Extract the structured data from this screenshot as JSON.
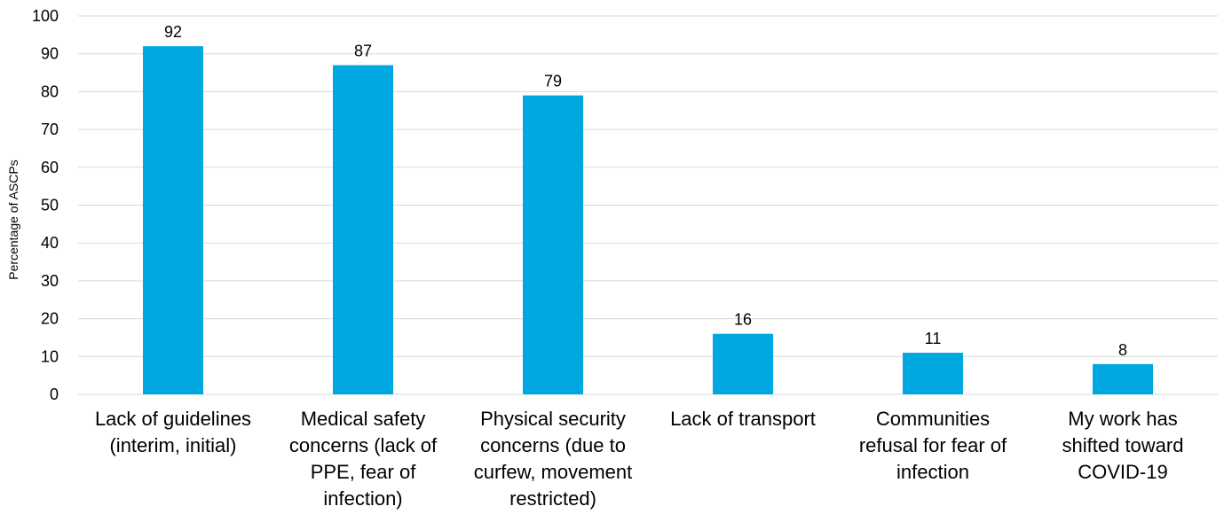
{
  "chart_data": {
    "type": "bar",
    "ylabel": "Percentage of ASCPs",
    "ylim": [
      0,
      100
    ],
    "yticks": [
      0,
      10,
      20,
      30,
      40,
      50,
      60,
      70,
      80,
      90,
      100
    ],
    "grid": true,
    "categories": [
      [
        "Lack of guidelines",
        "(interim, initial)"
      ],
      [
        "Medical safety",
        "concerns (lack of",
        "PPE, fear of",
        "infection)"
      ],
      [
        "Physical security",
        "concerns (due to",
        "curfew, movement",
        "restricted)"
      ],
      [
        "Lack of transport"
      ],
      [
        "Communities",
        "refusal for fear of",
        "infection"
      ],
      [
        "My work has",
        "shifted toward",
        "COVID-19"
      ]
    ],
    "values": [
      92,
      87,
      79,
      16,
      11,
      8
    ],
    "colors": {
      "bar": "#00a8e1"
    }
  }
}
